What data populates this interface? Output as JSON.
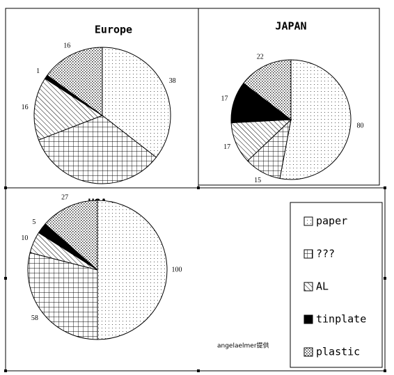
{
  "chart_data": [
    {
      "type": "pie",
      "title": "Europe",
      "values": [
        38,
        36,
        16,
        1,
        16
      ],
      "value_labels": [
        "38",
        null,
        "16",
        "1",
        "16"
      ]
    },
    {
      "type": "pie",
      "title": "JAPAN",
      "values": [
        80,
        15,
        17,
        17,
        22
      ]
    },
    {
      "type": "pie",
      "title": "USA",
      "values": [
        100,
        58,
        10,
        5,
        27
      ]
    }
  ],
  "legend": [
    "paper",
    "???",
    "AL",
    "tinplate",
    "plastic"
  ],
  "watermark": "angelaelmer提供"
}
